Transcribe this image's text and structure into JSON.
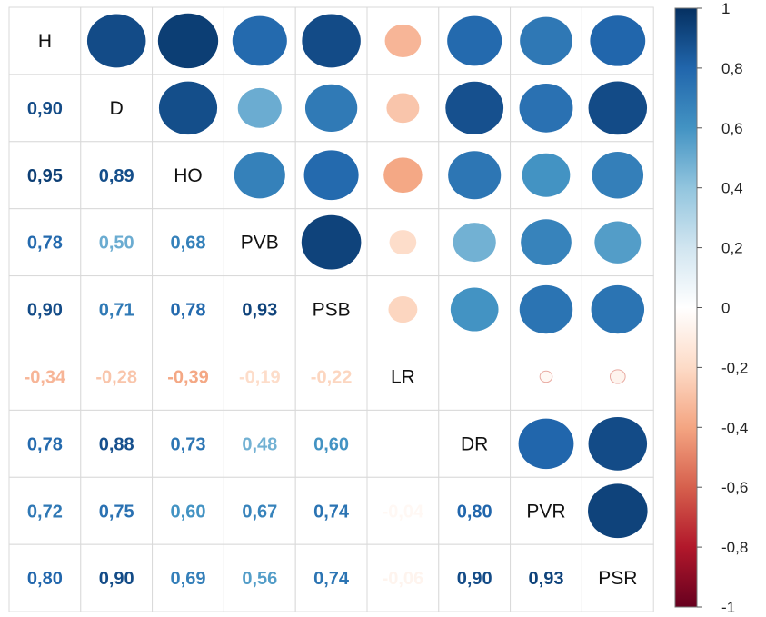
{
  "chart_data": {
    "type": "heatmap",
    "subtype": "correlation-matrix",
    "variables": [
      "H",
      "D",
      "HO",
      "PVB",
      "PSB",
      "LR",
      "DR",
      "PVR",
      "PSR"
    ],
    "lower_triangle_labels": [
      [
        "",
        "",
        "",
        "",
        "",
        "",
        "",
        "",
        ""
      ],
      [
        "0,90",
        "",
        "",
        "",
        "",
        "",
        "",
        "",
        ""
      ],
      [
        "0,95",
        "0,89",
        "",
        "",
        "",
        "",
        "",
        "",
        ""
      ],
      [
        "0,78",
        "0,50",
        "0,68",
        "",
        "",
        "",
        "",
        "",
        ""
      ],
      [
        "0,90",
        "0,71",
        "0,78",
        "0,93",
        "",
        "",
        "",
        "",
        ""
      ],
      [
        "-0,34",
        "-0,28",
        "-0,39",
        "-0,19",
        "-0,22",
        "",
        "",
        "",
        ""
      ],
      [
        "0,78",
        "0,88",
        "0,73",
        "0,48",
        "0,60",
        "",
        "",
        "",
        ""
      ],
      [
        "0,72",
        "0,75",
        "0,60",
        "0,67",
        "0,74",
        "-0,04",
        "0,80",
        "",
        ""
      ],
      [
        "0,80",
        "0,90",
        "0,69",
        "0,56",
        "0,74",
        "-0,06",
        "0,90",
        "0,93",
        ""
      ]
    ],
    "matrix": [
      [
        1.0,
        0.9,
        0.95,
        0.78,
        0.9,
        -0.34,
        0.78,
        0.72,
        0.8
      ],
      [
        0.9,
        1.0,
        0.89,
        0.5,
        0.71,
        -0.28,
        0.88,
        0.75,
        0.9
      ],
      [
        0.95,
        0.89,
        1.0,
        0.68,
        0.78,
        -0.39,
        0.73,
        0.6,
        0.69
      ],
      [
        0.78,
        0.5,
        0.68,
        1.0,
        0.93,
        -0.19,
        0.48,
        0.67,
        0.56
      ],
      [
        0.9,
        0.71,
        0.78,
        0.93,
        1.0,
        -0.22,
        0.6,
        0.74,
        0.74
      ],
      [
        -0.34,
        -0.28,
        -0.39,
        -0.19,
        -0.22,
        1.0,
        0.0,
        -0.04,
        -0.06
      ],
      [
        0.78,
        0.88,
        0.73,
        0.48,
        0.6,
        0.0,
        1.0,
        0.8,
        0.9
      ],
      [
        0.72,
        0.75,
        0.6,
        0.67,
        0.74,
        -0.04,
        0.8,
        1.0,
        0.93
      ],
      [
        0.8,
        0.9,
        0.69,
        0.56,
        0.74,
        -0.06,
        0.9,
        0.93,
        1.0
      ]
    ],
    "colorbar": {
      "range": [
        -1,
        1
      ],
      "ticks": [
        "1",
        "0,8",
        "0,6",
        "0,4",
        "0,2",
        "0",
        "-0,2",
        "-0,4",
        "-0,6",
        "-0,8",
        "-1"
      ],
      "colors": [
        "#67001f",
        "#b2182b",
        "#d6604d",
        "#f4a582",
        "#fddbc7",
        "#ffffff",
        "#d1e5f0",
        "#92c5de",
        "#4393c3",
        "#2166ac",
        "#053061"
      ]
    },
    "upper_triangle_glyph": "ellipse",
    "grid": true,
    "legend_position": "right"
  }
}
